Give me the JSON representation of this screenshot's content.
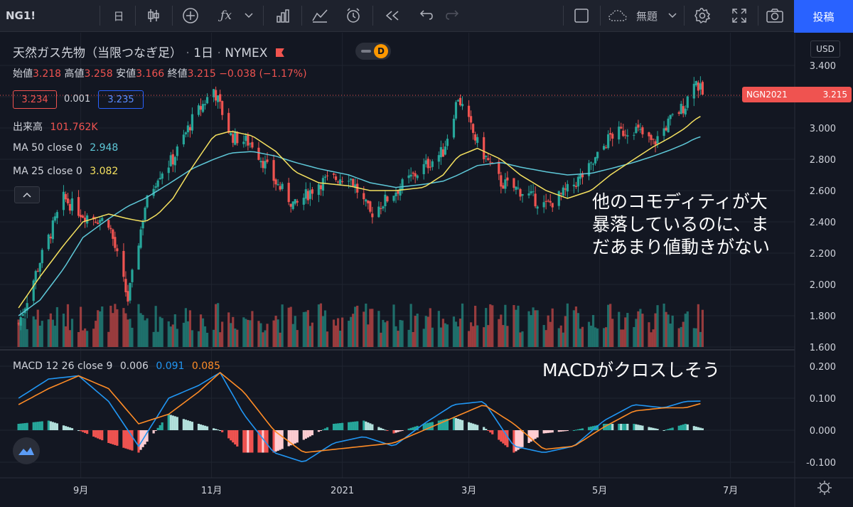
{
  "toolbar": {
    "symbol": "NG1!",
    "interval": "日",
    "indicators_icon": "fx-icon",
    "layout_name": "無題",
    "post_label": "投稿"
  },
  "header": {
    "title": "天然ガス先物（当限つなぎ足）",
    "interval": "1日",
    "exchange": "NYMEX",
    "badge": "D",
    "currency": "USD",
    "ohlc": {
      "open_label": "始値",
      "open": "3.218",
      "high_label": "高値",
      "high": "3.258",
      "low_label": "安値",
      "low": "3.166",
      "close_label": "終値",
      "close": "3.215",
      "change": "−0.038 (−1.17%)"
    },
    "bid": "3.234",
    "spread": "0.001",
    "ask": "3.235",
    "volume_label": "出来高",
    "volume": "101.762K",
    "ma50_label": "MA 50 close 0",
    "ma50_value": "2.948",
    "ma25_label": "MA 25 close 0",
    "ma25_value": "3.082",
    "collapse_icon": "chevron-up-icon"
  },
  "price_tag": {
    "symbol": "NGN2021",
    "value": "3.215"
  },
  "macd": {
    "label": "MACD 12 26 close 9",
    "hist": "0.006",
    "macd": "0.091",
    "signal": "0.085"
  },
  "annotations": {
    "main": [
      "他のコモディティが大",
      "暴落しているのに、ま",
      "だあまり値動きがない"
    ],
    "macd": "MACDがクロスしそう"
  },
  "colors": {
    "up": "#26a69a",
    "down": "#ef5350",
    "ma50": "#5ec8d8",
    "ma25": "#f5e15f",
    "macd_line": "#2196f3",
    "signal_line": "#ff8c26",
    "accent": "#2962ff"
  },
  "chart_data": [
    {
      "type": "candlestick",
      "title": "天然ガス先物（当限つなぎ足）",
      "x_ticks": [
        "9月",
        "11月",
        "2021",
        "3月",
        "5月",
        "7月"
      ],
      "y_ticks": [
        "3.400",
        "3.200",
        "3.000",
        "2.800",
        "2.600",
        "2.400",
        "2.200",
        "2.000",
        "1.800",
        "1.600"
      ],
      "ylim": [
        1.6,
        3.45
      ],
      "last_close": 3.215,
      "dates": [
        "2020-08-03",
        "2020-08-13",
        "2020-08-24",
        "2020-09-02",
        "2020-09-14",
        "2020-09-23",
        "2020-10-01",
        "2020-10-07",
        "2020-10-14",
        "2020-10-23",
        "2020-11-02",
        "2020-11-10",
        "2020-11-20",
        "2020-12-01",
        "2020-12-10",
        "2020-12-21",
        "2021-01-04",
        "2021-01-14",
        "2021-01-26",
        "2021-02-08",
        "2021-02-17",
        "2021-02-24",
        "2021-03-05",
        "2021-03-16",
        "2021-03-25",
        "2021-04-06",
        "2021-04-16",
        "2021-04-27",
        "2021-05-06",
        "2021-05-17",
        "2021-05-26",
        "2021-06-03",
        "2021-06-10",
        "2021-06-14",
        "2021-06-18"
      ],
      "close": [
        1.75,
        2.15,
        2.55,
        2.45,
        2.4,
        1.9,
        2.5,
        2.7,
        2.8,
        3.05,
        3.25,
        2.95,
        2.9,
        2.65,
        2.5,
        2.65,
        2.7,
        2.45,
        2.6,
        2.75,
        2.85,
        3.2,
        2.9,
        2.65,
        2.6,
        2.5,
        2.6,
        2.75,
        2.95,
        3.0,
        2.9,
        3.05,
        3.15,
        3.32,
        3.215
      ],
      "ma50": [
        1.8,
        1.9,
        2.1,
        2.3,
        2.42,
        2.5,
        2.55,
        2.6,
        2.66,
        2.74,
        2.8,
        2.84,
        2.85,
        2.82,
        2.78,
        2.74,
        2.7,
        2.65,
        2.62,
        2.64,
        2.66,
        2.7,
        2.76,
        2.78,
        2.75,
        2.72,
        2.7,
        2.71,
        2.74,
        2.78,
        2.82,
        2.86,
        2.9,
        2.93,
        2.948
      ],
      "ma25": [
        1.85,
        2.05,
        2.25,
        2.4,
        2.45,
        2.42,
        2.4,
        2.45,
        2.55,
        2.75,
        2.95,
        2.98,
        2.95,
        2.85,
        2.72,
        2.65,
        2.63,
        2.6,
        2.6,
        2.62,
        2.7,
        2.82,
        2.87,
        2.8,
        2.7,
        2.6,
        2.55,
        2.6,
        2.7,
        2.8,
        2.88,
        2.94,
        3.0,
        3.05,
        3.082
      ],
      "volume_note": "volume histogram overlaid in lower part of price pane"
    },
    {
      "type": "line",
      "title": "MACD 12 26 close 9",
      "y_ticks": [
        "0.200",
        "0.100",
        "0.000",
        "-0.100"
      ],
      "ylim": [
        -0.12,
        0.22
      ],
      "dates": [
        "2020-08-03",
        "2020-08-17",
        "2020-08-31",
        "2020-09-14",
        "2020-09-28",
        "2020-10-12",
        "2020-10-26",
        "2020-11-05",
        "2020-11-16",
        "2020-11-30",
        "2020-12-14",
        "2020-12-28",
        "2021-01-11",
        "2021-01-25",
        "2021-02-08",
        "2021-02-22",
        "2021-03-08",
        "2021-03-22",
        "2021-04-05",
        "2021-04-19",
        "2021-05-03",
        "2021-05-17",
        "2021-05-31",
        "2021-06-10",
        "2021-06-18"
      ],
      "series": [
        {
          "name": "MACD",
          "values": [
            0.1,
            0.16,
            0.17,
            0.09,
            -0.05,
            0.1,
            0.14,
            0.18,
            0.05,
            -0.07,
            -0.1,
            -0.04,
            -0.02,
            -0.05,
            0.02,
            0.08,
            0.09,
            -0.05,
            -0.07,
            -0.05,
            0.03,
            0.08,
            0.07,
            0.09,
            0.091
          ]
        },
        {
          "name": "Signal",
          "values": [
            0.08,
            0.13,
            0.17,
            0.13,
            0.02,
            0.05,
            0.12,
            0.18,
            0.12,
            0.0,
            -0.07,
            -0.06,
            -0.05,
            -0.04,
            0.0,
            0.04,
            0.08,
            0.02,
            -0.06,
            -0.05,
            0.01,
            0.06,
            0.07,
            0.07,
            0.085
          ]
        }
      ],
      "hist_last": 0.006
    }
  ]
}
